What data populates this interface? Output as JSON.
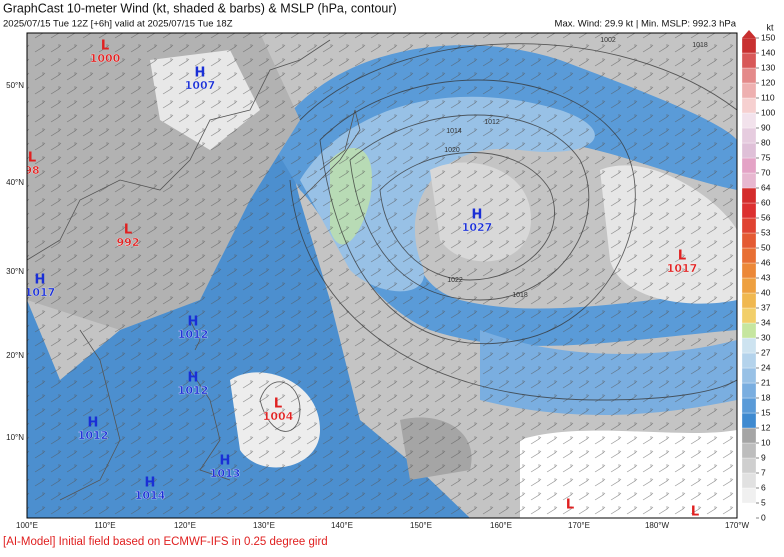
{
  "header": {
    "title": "GraphCast 10-meter Wind (kt, shaded & barbs) & MSLP (hPa, contour)",
    "run": "2025/07/15 Tue 12Z [+6h] valid at 2025/07/15 Tue 18Z",
    "stats": "Max. Wind: 29.9 kt | Min. MSLP: 992.3 hPa"
  },
  "map": {
    "lon_labels": [
      "100°E",
      "110°E",
      "120°E",
      "130°E",
      "140°E",
      "150°E",
      "160°E",
      "170°E",
      "180°W",
      "170°W"
    ],
    "lat_labels": [
      "50°N",
      "40°N",
      "30°N",
      "20°N",
      "10°N"
    ],
    "centers": [
      {
        "symbol": "L",
        "value": "1000"
      },
      {
        "symbol": "H",
        "value": "1007"
      },
      {
        "symbol": "L",
        "value": "98"
      },
      {
        "symbol": "L",
        "value": "992"
      },
      {
        "symbol": "H",
        "value": "1017"
      },
      {
        "symbol": "H",
        "value": "1012"
      },
      {
        "symbol": "H",
        "value": "1012"
      },
      {
        "symbol": "H",
        "value": "1012"
      },
      {
        "symbol": "L",
        "value": "1004"
      },
      {
        "symbol": "H",
        "value": "1013"
      },
      {
        "symbol": "H",
        "value": "1014"
      },
      {
        "symbol": "H",
        "value": "1027"
      },
      {
        "symbol": "L",
        "value": "1017"
      },
      {
        "symbol": "L"
      },
      {
        "symbol": "L"
      }
    ],
    "contour_labels": [
      "1014",
      "1020",
      "1012",
      "1022",
      "1018",
      "1002",
      "1018"
    ]
  },
  "colorbar": {
    "unit": "kt",
    "ticks": [
      0,
      5,
      6,
      7,
      9,
      10,
      12,
      15,
      18,
      21,
      24,
      27,
      30,
      34,
      37,
      40,
      43,
      46,
      50,
      53,
      56,
      60,
      64,
      70,
      75,
      80,
      90,
      100,
      110,
      120,
      130,
      140,
      150
    ],
    "colors": [
      "#ffffff",
      "#f0f0f0",
      "#e1e1e1",
      "#cfcfcf",
      "#bdbdbd",
      "#a5a5a5",
      "#3f8ad0",
      "#5a9bd8",
      "#7aaee0",
      "#98c1e6",
      "#b4d3ec",
      "#cde3f0",
      "#c6e6a0",
      "#f2cf6a",
      "#f0b850",
      "#eea040",
      "#ec8838",
      "#e86f34",
      "#e45a33",
      "#e04332",
      "#dc3030",
      "#d42c2c",
      "#e7b7d0",
      "#e4a3c6",
      "#dfc0d8",
      "#e6ccdf",
      "#f2e2ec",
      "#f6d0d0",
      "#eeb0b0",
      "#e48a8a",
      "#d85858",
      "#c83030"
    ],
    "top_color": "#c83030"
  },
  "footer": "[AI-Model] Initial field based on ECMWF-IFS in 0.25 degree gird"
}
